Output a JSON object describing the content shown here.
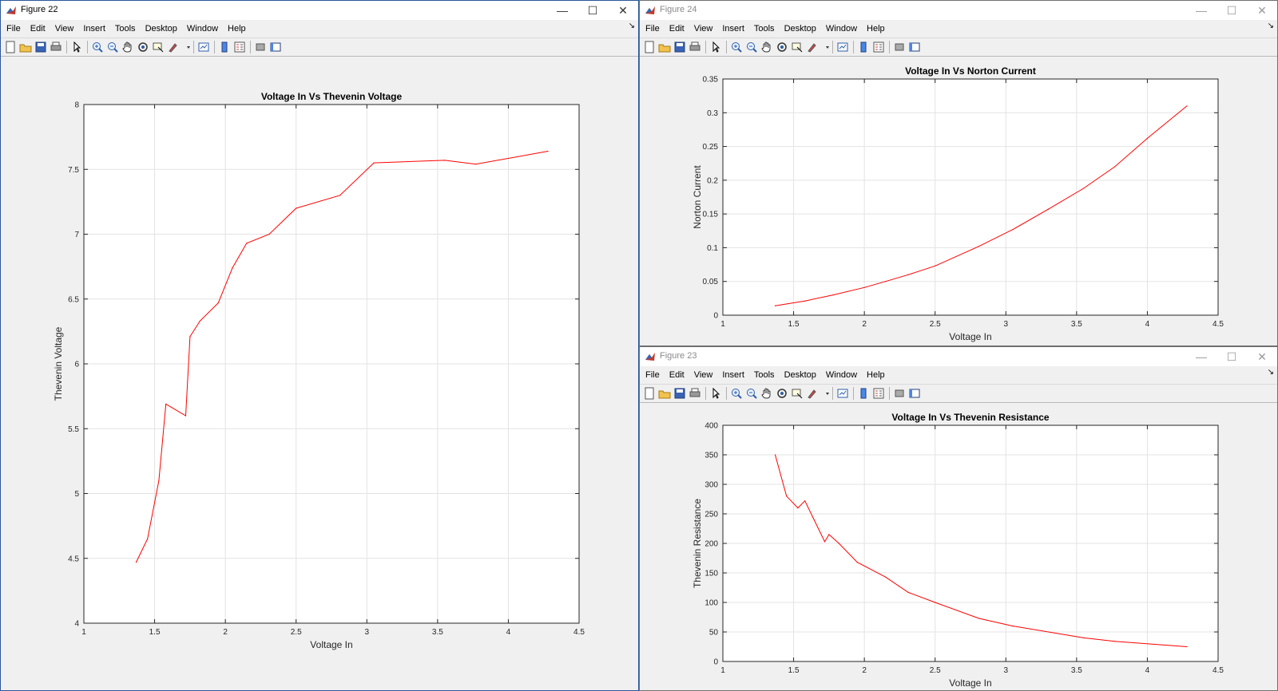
{
  "windows": [
    {
      "title": "Figure 22",
      "menu": [
        "File",
        "Edit",
        "View",
        "Insert",
        "Tools",
        "Desktop",
        "Window",
        "Help"
      ],
      "chart_data": {
        "type": "line",
        "title": "Voltage In Vs Thevenin Voltage",
        "xlabel": "Voltage In",
        "ylabel": "Thevenin Voltage",
        "xlim": [
          1,
          4.5
        ],
        "ylim": [
          4,
          8
        ],
        "xticks": [
          "1",
          "1.5",
          "2",
          "2.5",
          "3",
          "3.5",
          "4",
          "4.5"
        ],
        "yticks": [
          "4",
          "4.5",
          "5",
          "5.5",
          "6",
          "6.5",
          "7",
          "7.5",
          "8"
        ],
        "grid": true,
        "series": [
          {
            "color": "#ff0000",
            "x": [
              1.37,
              1.45,
              1.53,
              1.58,
              1.72,
              1.75,
              1.82,
              1.95,
              2.05,
              2.15,
              2.31,
              2.5,
              2.81,
              3.05,
              3.55,
              3.77,
              4.28
            ],
            "y": [
              4.47,
              4.65,
              5.1,
              5.69,
              5.6,
              6.21,
              6.33,
              6.47,
              6.74,
              6.93,
              7.0,
              7.2,
              7.3,
              7.55,
              7.57,
              7.54,
              7.64
            ]
          }
        ]
      }
    },
    {
      "title": "Figure 24",
      "menu": [
        "File",
        "Edit",
        "View",
        "Insert",
        "Tools",
        "Desktop",
        "Window",
        "Help"
      ],
      "chart_data": {
        "type": "line",
        "title": "Voltage In Vs Norton Current",
        "xlabel": "Voltage In",
        "ylabel": "Norton Current",
        "xlim": [
          1,
          4.5
        ],
        "ylim": [
          0,
          0.35
        ],
        "xticks": [
          "1",
          "1.5",
          "2",
          "2.5",
          "3",
          "3.5",
          "4",
          "4.5"
        ],
        "yticks": [
          "0",
          "0.05",
          "0.1",
          "0.15",
          "0.2",
          "0.25",
          "0.3",
          "0.35"
        ],
        "grid": true,
        "series": [
          {
            "color": "#ff0000",
            "x": [
              1.37,
              1.58,
              1.78,
              2.0,
              2.15,
              2.31,
              2.5,
              2.81,
              3.05,
              3.3,
              3.55,
              3.77,
              4.0,
              4.28
            ],
            "y": [
              0.014,
              0.021,
              0.03,
              0.041,
              0.05,
              0.06,
              0.073,
              0.102,
              0.127,
              0.157,
              0.188,
              0.22,
              0.262,
              0.31
            ]
          }
        ]
      }
    },
    {
      "title": "Figure 23",
      "menu": [
        "File",
        "Edit",
        "View",
        "Insert",
        "Tools",
        "Desktop",
        "Window",
        "Help"
      ],
      "chart_data": {
        "type": "line",
        "title": "Voltage In Vs Thevenin Resistance",
        "xlabel": "Voltage In",
        "ylabel": "Thevenin Resistance",
        "xlim": [
          1,
          4.5
        ],
        "ylim": [
          0,
          400
        ],
        "xticks": [
          "1",
          "1.5",
          "2",
          "2.5",
          "3",
          "3.5",
          "4",
          "4.5"
        ],
        "yticks": [
          "0",
          "50",
          "100",
          "150",
          "200",
          "250",
          "300",
          "350",
          "400"
        ],
        "grid": true,
        "series": [
          {
            "color": "#ff0000",
            "x": [
              1.37,
              1.45,
              1.53,
              1.58,
              1.72,
              1.75,
              1.82,
              1.95,
              2.15,
              2.31,
              2.5,
              2.81,
              3.05,
              3.55,
              3.77,
              4.28
            ],
            "y": [
              350,
              280,
              260,
              272,
              203,
              215,
              200,
              168,
              143,
              117,
              100,
              73,
              60,
              40,
              34,
              25
            ]
          }
        ]
      }
    }
  ]
}
